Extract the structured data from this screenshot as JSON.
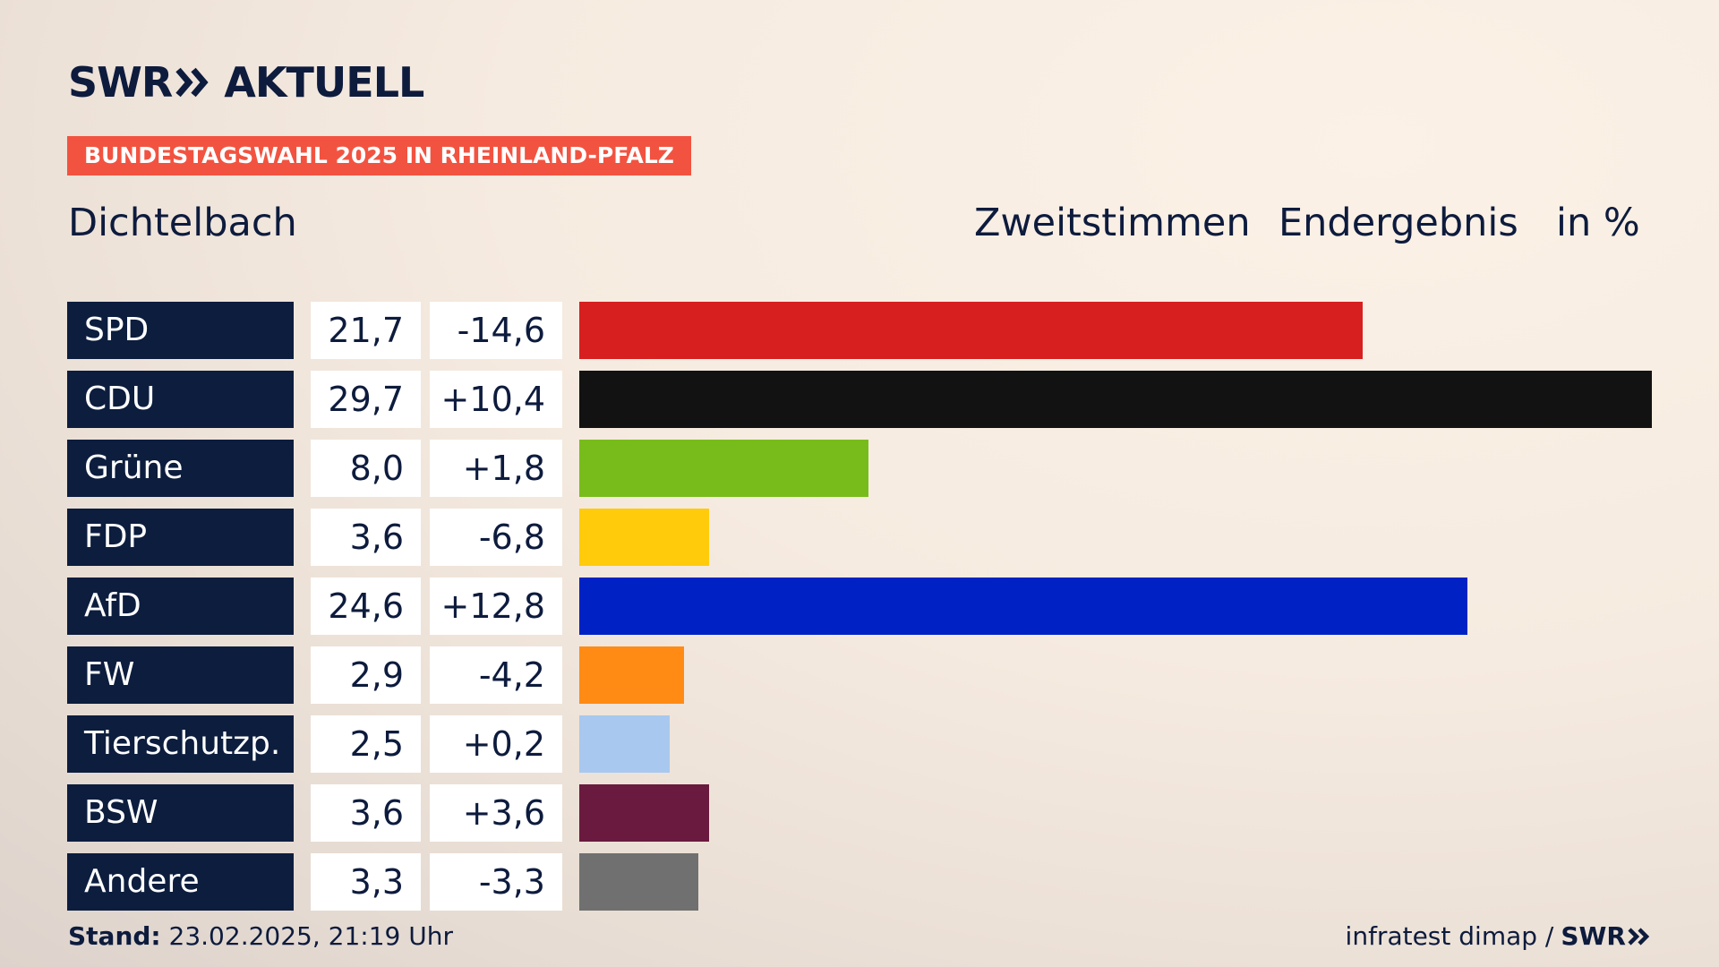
{
  "brand": {
    "swr": "SWR",
    "aktuell": "AKTUELL"
  },
  "banner": "BUNDESTAGSWAHL 2025 IN RHEINLAND-PFALZ",
  "location": "Dichtelbach",
  "header": {
    "vote_type": "Zweitstimmen",
    "result_type": "Endergebnis",
    "unit": "in %"
  },
  "footer": {
    "stand_label": "Stand:",
    "stand_value": "23.02.2025, 21:19 Uhr",
    "source": "infratest dimap /",
    "source_logo": "SWR"
  },
  "chart_data": {
    "type": "bar",
    "orientation": "horizontal",
    "categories": [
      "SPD",
      "CDU",
      "Grüne",
      "FDP",
      "AfD",
      "FW",
      "Tierschutzp.",
      "BSW",
      "Andere"
    ],
    "values": [
      21.7,
      29.7,
      8.0,
      3.6,
      24.6,
      2.9,
      2.5,
      3.6,
      3.3
    ],
    "value_labels": [
      "21,7",
      "29,7",
      "8,0",
      "3,6",
      "24,6",
      "2,9",
      "2,5",
      "3,6",
      "3,3"
    ],
    "diff_labels": [
      "-14,6",
      "+10,4",
      "+1,8",
      "-6,8",
      "+12,8",
      "-4,2",
      "+0,2",
      "+3,6",
      "-3,3"
    ],
    "colors": [
      "#d71f1f",
      "#121212",
      "#78bc1b",
      "#ffcb0a",
      "#0022c4",
      "#ff8b14",
      "#a8c8ef",
      "#6a1a3f",
      "#707070"
    ],
    "xlim": [
      0,
      29.7
    ],
    "grid": false
  }
}
